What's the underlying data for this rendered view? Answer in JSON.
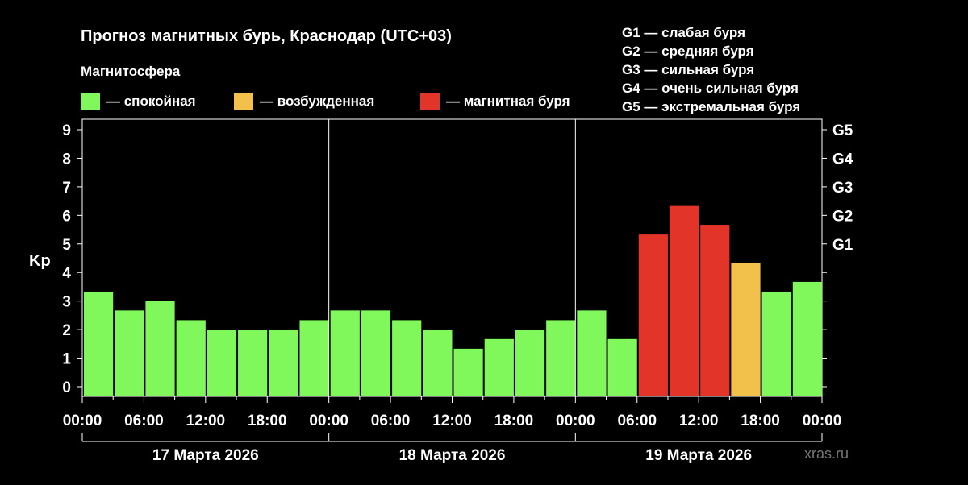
{
  "title": "Прогноз магнитных бурь, Краснодар (UTC+03)",
  "magnetosphere": {
    "heading": "Магнитосфера",
    "legend": [
      {
        "label": "— спокойная",
        "color": "#80f75a"
      },
      {
        "label": "— возбужденная",
        "color": "#f2c14c"
      },
      {
        "label": "— магнитная буря",
        "color": "#e23428"
      }
    ]
  },
  "g_scale": [
    "G1 — слабая буря",
    "G2 — средняя буря",
    "G3 — сильная буря",
    "G4 — очень сильная буря",
    "G5 — экстремальная буря"
  ],
  "watermark": "xras.ru",
  "chart_data": {
    "type": "bar",
    "title": "Прогноз магнитных бурь, Краснодар (UTC+03)",
    "ylabel": "Kp",
    "ylim": [
      0,
      9
    ],
    "yticks": [
      "0",
      "1",
      "2",
      "3",
      "4",
      "5",
      "6",
      "7",
      "8",
      "9"
    ],
    "right_axis": [
      {
        "label": "G1",
        "kp": 5
      },
      {
        "label": "G2",
        "kp": 6
      },
      {
        "label": "G3",
        "kp": 7
      },
      {
        "label": "G4",
        "kp": 8
      },
      {
        "label": "G5",
        "kp": 9
      }
    ],
    "xtick_labels": [
      "00:00",
      "06:00",
      "12:00",
      "18:00",
      "00:00",
      "06:00",
      "12:00",
      "18:00",
      "00:00",
      "06:00",
      "12:00",
      "18:00",
      "00:00"
    ],
    "days": [
      "17 Марта 2026",
      "18 Марта 2026",
      "19 Марта 2026"
    ],
    "interval_hours": 3,
    "values": [
      3.33,
      2.67,
      3.0,
      2.33,
      2.0,
      2.0,
      2.0,
      2.33,
      2.67,
      2.67,
      2.33,
      2.0,
      1.33,
      1.67,
      2.0,
      2.33,
      2.67,
      1.67,
      5.33,
      6.33,
      5.67,
      4.33,
      3.33,
      3.67
    ],
    "status": [
      "quiet",
      "quiet",
      "quiet",
      "quiet",
      "quiet",
      "quiet",
      "quiet",
      "quiet",
      "quiet",
      "quiet",
      "quiet",
      "quiet",
      "quiet",
      "quiet",
      "quiet",
      "quiet",
      "quiet",
      "quiet",
      "storm",
      "storm",
      "storm",
      "active",
      "quiet",
      "quiet"
    ],
    "colors": {
      "quiet": "#80f75a",
      "active": "#f2c14c",
      "storm": "#e23428"
    },
    "grid": true
  }
}
